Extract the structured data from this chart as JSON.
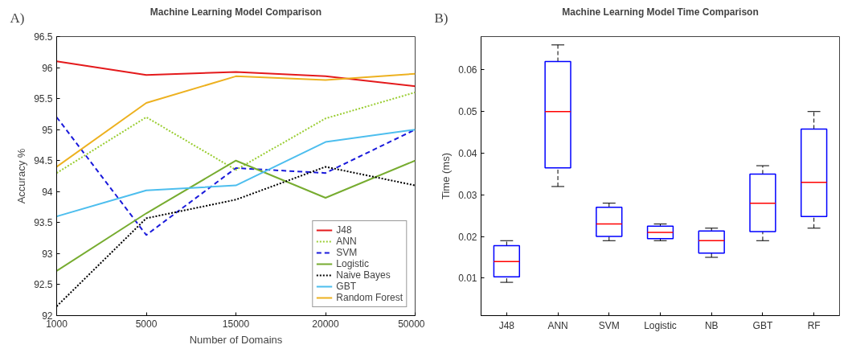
{
  "chart_data": [
    {
      "type": "line",
      "title": "Machine Learning Model Comparison",
      "xlabel": "Number of Domains",
      "ylabel": "Accuracy %",
      "annotations": [
        "A)"
      ],
      "categories": [
        "1000",
        "5000",
        "15000",
        "20000",
        "50000"
      ],
      "ylim": [
        92,
        96.5
      ],
      "yticks": [
        92,
        92.5,
        93,
        93.5,
        94,
        94.5,
        95,
        95.5,
        96,
        96.5
      ],
      "legend": "bottom right",
      "series": [
        {
          "name": "J48",
          "color": "#e41a1c",
          "line_style": "solid",
          "values": [
            96.1,
            95.88,
            95.93,
            95.86,
            95.7
          ]
        },
        {
          "name": "ANN",
          "color": "#9acd32",
          "line_style": "dotted",
          "values": [
            94.3,
            95.2,
            94.35,
            95.18,
            95.6
          ]
        },
        {
          "name": "SVM",
          "color": "#1a1adb",
          "line_style": "dashed",
          "values": [
            95.2,
            93.3,
            94.38,
            94.3,
            95.0
          ]
        },
        {
          "name": "Logistic",
          "color": "#77ac30",
          "line_style": "solid",
          "values": [
            92.72,
            93.65,
            94.5,
            93.9,
            94.5
          ]
        },
        {
          "name": "Naive Bayes",
          "color": "#000000",
          "line_style": "dotted",
          "values": [
            92.15,
            93.57,
            93.87,
            94.4,
            94.1
          ]
        },
        {
          "name": "GBT",
          "color": "#4dbeee",
          "line_style": "solid",
          "values": [
            93.6,
            94.02,
            94.1,
            94.8,
            95.0
          ]
        },
        {
          "name": "Random Forest",
          "color": "#edb120",
          "line_style": "solid",
          "values": [
            94.4,
            95.43,
            95.86,
            95.8,
            95.9
          ]
        }
      ]
    },
    {
      "type": "box",
      "title": "Machine Learning Model Time Comparison",
      "ylabel": "Time (ms)",
      "annotations": [
        "B)"
      ],
      "categories": [
        "J48",
        "ANN",
        "SVM",
        "Logistic",
        "NB",
        "GBT",
        "RF"
      ],
      "ylim": [
        0.001,
        0.068
      ],
      "yticks": [
        0.01,
        0.02,
        0.03,
        0.04,
        0.05,
        0.06
      ],
      "series": [
        {
          "color": "#0000ff",
          "boxes": [
            {
              "low": 0.009,
              "q1": 0.0103,
              "median": 0.014,
              "q3": 0.0178,
              "high": 0.019
            },
            {
              "low": 0.032,
              "q1": 0.0365,
              "median": 0.05,
              "q3": 0.062,
              "high": 0.066
            },
            {
              "low": 0.019,
              "q1": 0.02,
              "median": 0.023,
              "q3": 0.027,
              "high": 0.028
            },
            {
              "low": 0.019,
              "q1": 0.0195,
              "median": 0.021,
              "q3": 0.0225,
              "high": 0.023
            },
            {
              "low": 0.015,
              "q1": 0.016,
              "median": 0.019,
              "q3": 0.0213,
              "high": 0.022
            },
            {
              "low": 0.019,
              "q1": 0.0212,
              "median": 0.028,
              "q3": 0.035,
              "high": 0.037
            },
            {
              "low": 0.022,
              "q1": 0.0248,
              "median": 0.033,
              "q3": 0.0458,
              "high": 0.05
            }
          ]
        }
      ]
    }
  ]
}
